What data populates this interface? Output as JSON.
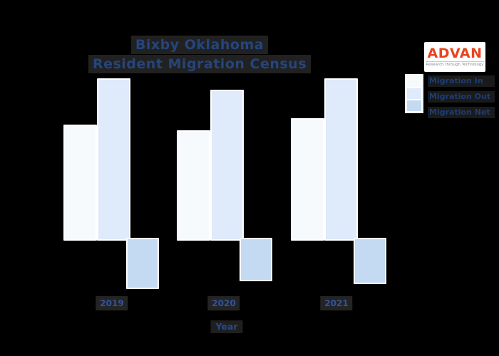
{
  "title": {
    "line1": "Bixby Oklahoma",
    "line2": "Resident Migration Census"
  },
  "logo": {
    "name": "ADVAN",
    "tagline": "Research through Technology",
    "brand_color": "#e8441f",
    "background": "#ffffff"
  },
  "legend": {
    "position": "upper right",
    "items": [
      {
        "label": "Migration In",
        "color": "#f7fafd"
      },
      {
        "label": "Migration Out",
        "color": "#dfeafa"
      },
      {
        "label": "Migration Net",
        "color": "#c4d9f2"
      }
    ]
  },
  "xaxis": {
    "label": "Year",
    "tick_labels": [
      "2019",
      "2020",
      "2021"
    ]
  },
  "colors": {
    "background": "#000000",
    "title_text": "#25457d",
    "tick_text": "#33549c",
    "legend_text": "#1d3d74",
    "bar_border": "#ffffff"
  },
  "chart_data": {
    "type": "bar",
    "title": "Bixby Oklahoma Resident Migration Census",
    "xlabel": "Year",
    "ylabel": "",
    "categories": [
      "2019",
      "2020",
      "2021"
    ],
    "series": [
      {
        "name": "Migration In",
        "color": "#f7fafd",
        "values": [
          1590,
          1510,
          1680
        ]
      },
      {
        "name": "Migration Out",
        "color": "#dfeafa",
        "values": [
          2240,
          2080,
          2240
        ]
      },
      {
        "name": "Migration Net",
        "color": "#c4d9f2",
        "values": [
          -680,
          -570,
          -610
        ]
      }
    ],
    "ylim": [
      -800,
      2400
    ],
    "grid": false,
    "axes_visible": false,
    "legend_position": "upper right",
    "background": "#000000",
    "note": "y-axis not shown in source; values estimated in relative units"
  }
}
